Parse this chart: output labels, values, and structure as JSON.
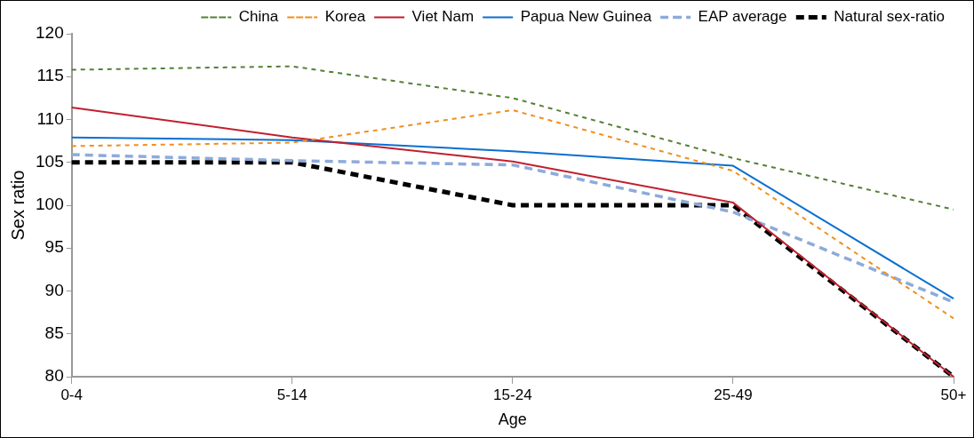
{
  "chart_data": {
    "type": "line",
    "xlabel": "Age",
    "ylabel": "Sex ratio",
    "categories": [
      "0-4",
      "5-14",
      "15-24",
      "25-49",
      "50+"
    ],
    "series": [
      {
        "name": "China",
        "color": "#538135",
        "line_style": "dotted",
        "values": [
          115.8,
          116.2,
          112.5,
          105.5,
          99.5
        ]
      },
      {
        "name": "Korea",
        "color": "#f28e1c",
        "line_style": "dotted",
        "values": [
          106.9,
          107.3,
          111.1,
          104.0,
          86.8
        ]
      },
      {
        "name": "Viet Nam",
        "color": "#c0202e",
        "line_style": "solid",
        "values": [
          111.4,
          107.9,
          105.1,
          100.3,
          80
        ]
      },
      {
        "name": "Papua New Guinea",
        "color": "#0a6fd0",
        "line_style": "solid",
        "values": [
          107.9,
          107.6,
          106.3,
          104.6,
          89.1
        ]
      },
      {
        "name": "EAP average",
        "color": "#8eaadb",
        "line_style": "dashed",
        "values": [
          105.9,
          105.2,
          104.7,
          99.2,
          88.7
        ]
      },
      {
        "name": "Natural sex-ratio",
        "color": "#000000",
        "line_style": "dashed",
        "values": [
          105,
          105,
          100,
          100,
          80
        ]
      }
    ],
    "ylim": [
      80,
      120
    ],
    "yticks": [
      80,
      85,
      90,
      95,
      100,
      105,
      110,
      115,
      120
    ],
    "grid": false,
    "legend": "top right",
    "marker": "none"
  }
}
